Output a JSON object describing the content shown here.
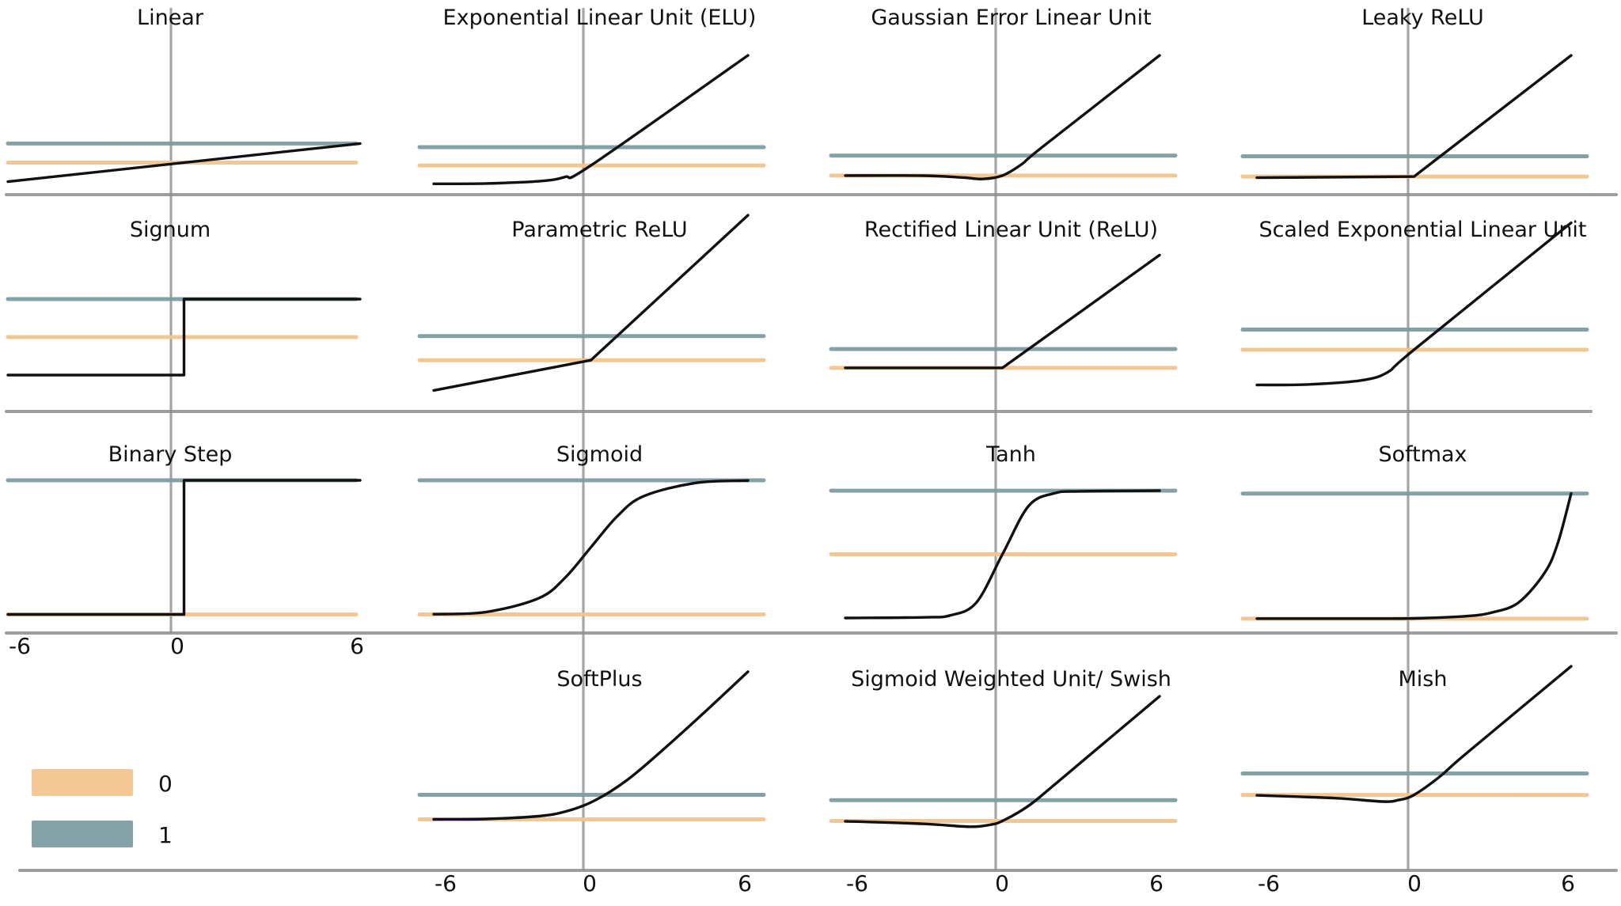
{
  "chart_data": {
    "type": "line",
    "title": "",
    "xlim": [
      -6,
      6
    ],
    "x_ticks": [
      "-6",
      "0",
      "6"
    ],
    "reference_lines": [
      {
        "name": "0",
        "value": 0,
        "color": "#f3c58e"
      },
      {
        "name": "1",
        "value": 1,
        "color": "#7e9ea2"
      }
    ],
    "legend": {
      "position": "bottom-left",
      "entries": [
        "0",
        "1"
      ]
    },
    "curve_color": "#111111",
    "panels": [
      {
        "name": "Linear",
        "ylim": [
          -1.1,
          2.3
        ],
        "x": [
          -6,
          6
        ],
        "y": [
          -1,
          1
        ]
      },
      {
        "name": "Exponential Linear Unit (ELU)",
        "ylim": [
          -0.9,
          6.0
        ],
        "x": [
          -6,
          -4,
          -2,
          -1,
          0,
          6
        ],
        "y": [
          -1,
          -0.98,
          -0.86,
          -0.63,
          0,
          6
        ]
      },
      {
        "name": "Gaussian Error Linear Unit",
        "ylim": [
          -0.4,
          6.0
        ],
        "x": [
          -6,
          -3,
          -1.5,
          -0.75,
          0,
          0.75,
          1.5,
          6
        ],
        "y": [
          0,
          -0.004,
          -0.1,
          -0.17,
          0,
          0.58,
          1.4,
          6
        ]
      },
      {
        "name": "Leaky ReLU",
        "ylim": [
          -0.35,
          6.0
        ],
        "x": [
          -6,
          0,
          6
        ],
        "y": [
          -0.06,
          0,
          6
        ]
      },
      {
        "name": "Signum",
        "ylim": [
          -1.5,
          2.0
        ],
        "x": [
          -6,
          0,
          0,
          6
        ],
        "y": [
          -1,
          -1,
          1,
          1
        ]
      },
      {
        "name": "Parametric ReLU",
        "ylim": [
          -1.4,
          4.1
        ],
        "x": [
          -6,
          0,
          6
        ],
        "y": [
          -1.25,
          0,
          6
        ]
      },
      {
        "name": "Rectified Linear Unit (ReLU)",
        "ylim": [
          -0.3,
          6.1
        ],
        "x": [
          -6,
          0,
          6
        ],
        "y": [
          0,
          0,
          6
        ]
      },
      {
        "name": "Scaled Exponential Linear Unit",
        "ylim": [
          -2.2,
          4.4
        ],
        "x": [
          -6,
          -4,
          -2,
          -1,
          0,
          6
        ],
        "y": [
          -1.75,
          -1.72,
          -1.52,
          -1.11,
          0,
          6.3
        ]
      },
      {
        "name": "Binary Step",
        "ylim": [
          -0.05,
          1.1
        ],
        "x": [
          -6,
          0,
          0,
          6
        ],
        "y": [
          0,
          0,
          1,
          1
        ]
      },
      {
        "name": "Sigmoid",
        "ylim": [
          -0.05,
          1.1
        ],
        "x": [
          -6,
          -4,
          -2,
          -1,
          0,
          1,
          2,
          4,
          6
        ],
        "y": [
          0.002,
          0.018,
          0.12,
          0.27,
          0.5,
          0.73,
          0.88,
          0.98,
          0.998
        ]
      },
      {
        "name": "Tanh",
        "ylim": [
          -1.05,
          1.25
        ],
        "x": [
          -6,
          -3,
          -2,
          -1,
          0,
          1,
          2,
          3,
          6
        ],
        "y": [
          -1,
          -0.99,
          -0.96,
          -0.76,
          0,
          0.76,
          0.96,
          0.99,
          1
        ]
      },
      {
        "name": "Softmax",
        "ylim": [
          -0.02,
          1.15
        ],
        "x": [
          -6,
          -2,
          0,
          2,
          3,
          4,
          5,
          5.5,
          6
        ],
        "y": [
          0,
          0.0003,
          0.002,
          0.02,
          0.05,
          0.13,
          0.37,
          0.61,
          1.0
        ]
      },
      {
        "name": "SoftPlus",
        "ylim": [
          -0.4,
          5.0
        ],
        "x": [
          -6,
          -4,
          -2,
          -1,
          0,
          1,
          2,
          4,
          6
        ],
        "y": [
          0.0025,
          0.018,
          0.13,
          0.31,
          0.69,
          1.31,
          2.13,
          4.02,
          6.0
        ]
      },
      {
        "name": "Sigmoid Weighted Unit/ Swish",
        "ylim": [
          -0.4,
          6.0
        ],
        "x": [
          -6,
          -3,
          -1.28,
          -0.5,
          0,
          1,
          2,
          6
        ],
        "y": [
          -0.015,
          -0.14,
          -0.28,
          -0.19,
          0,
          0.73,
          1.76,
          6
        ]
      },
      {
        "name": "Mish",
        "ylim": [
          -1.6,
          4.6
        ],
        "x": [
          -6,
          -3,
          -1.2,
          -0.6,
          0,
          1,
          2,
          6
        ],
        "y": [
          -0.015,
          -0.15,
          -0.31,
          -0.24,
          0,
          0.87,
          1.94,
          6
        ]
      }
    ]
  }
}
